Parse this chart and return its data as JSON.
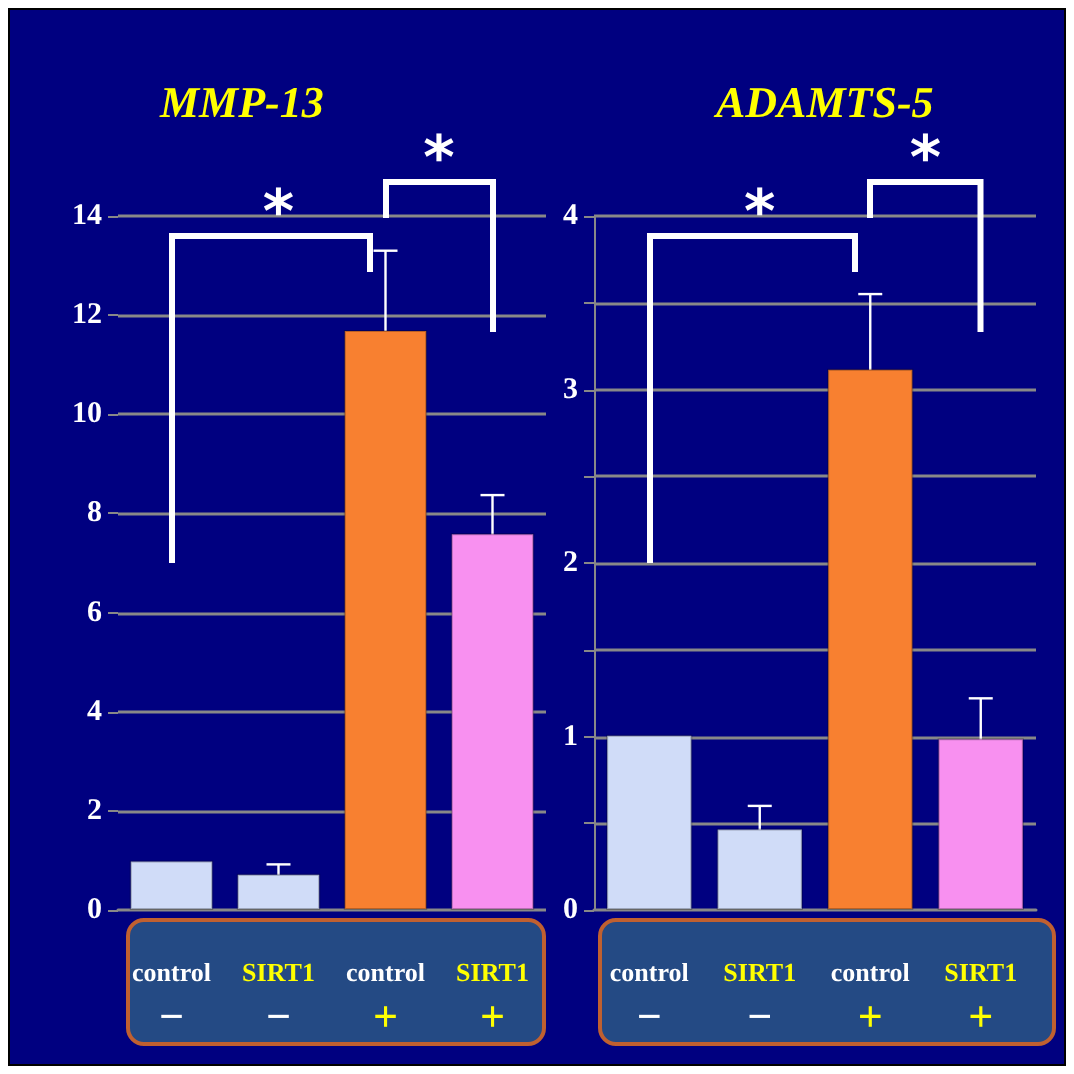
{
  "chart_data": [
    {
      "type": "bar",
      "title": "MMP-13",
      "categories": [
        "control\n−",
        "SIRT1\n−",
        "control\n+",
        "SIRT1\n+"
      ],
      "values": [
        1.0,
        0.73,
        11.7,
        7.6
      ],
      "errors": [
        null,
        0.19,
        1.6,
        0.77
      ],
      "colors": [
        "#d0dcf8",
        "#d0dcf8",
        "#f88030",
        "#f890f0"
      ],
      "ylim": [
        0,
        14
      ],
      "yticks": [
        0,
        2,
        4,
        6,
        8,
        10,
        12,
        14
      ],
      "grid": "y",
      "annotations": [
        "*",
        "*"
      ]
    },
    {
      "type": "bar",
      "title": "ADAMTS-5",
      "categories": [
        "control\n−",
        "SIRT1\n−",
        "control\n+",
        "SIRT1\n+"
      ],
      "values": [
        1.01,
        0.47,
        3.12,
        0.99
      ],
      "errors": [
        null,
        0.13,
        0.43,
        0.23
      ],
      "colors": [
        "#d0dcf8",
        "#d0dcf8",
        "#f88030",
        "#f890f0"
      ],
      "ylim": [
        0,
        4
      ],
      "yticks": [
        0,
        {
          "value": 0.5,
          "label": null
        },
        1,
        {
          "value": 1.5,
          "label": null
        },
        2,
        {
          "value": 2.5,
          "label": null
        },
        3,
        {
          "value": 3.5,
          "label": null
        },
        4
      ],
      "grid": "y",
      "annotations": [
        "*",
        "*"
      ]
    }
  ]
}
